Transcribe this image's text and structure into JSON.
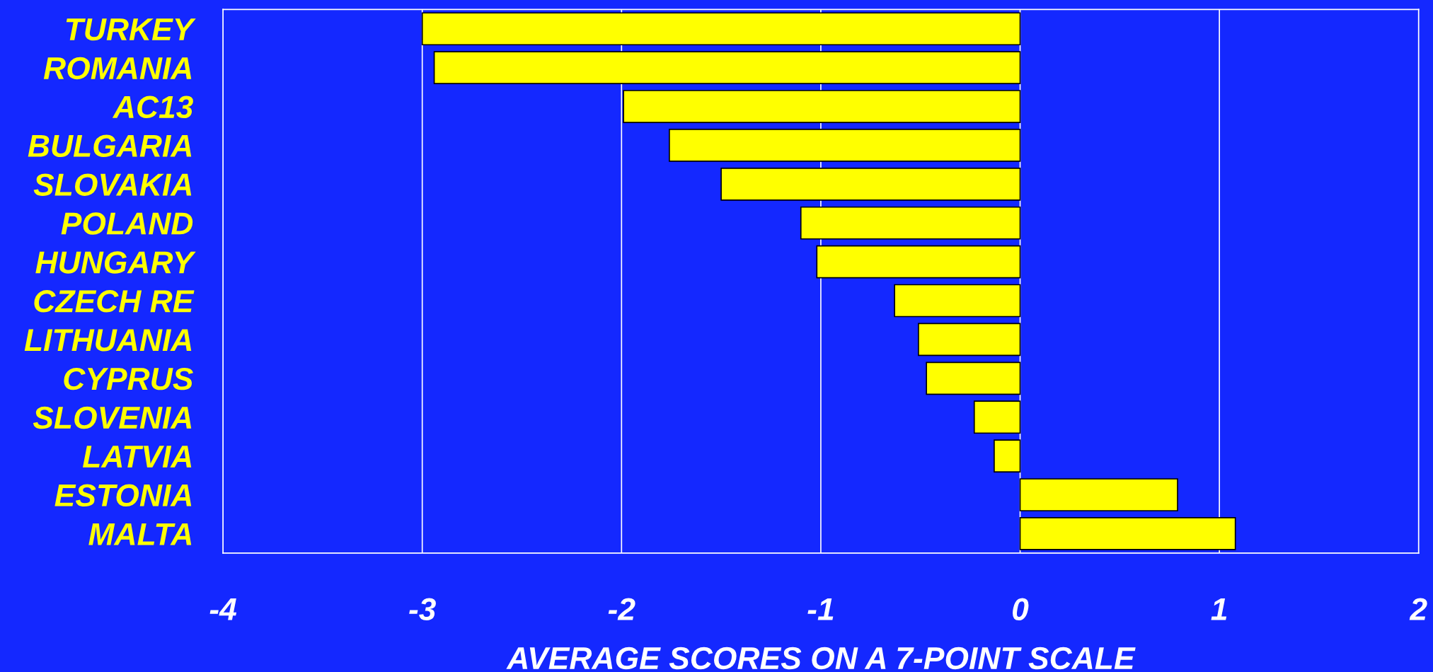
{
  "chart_data": {
    "type": "bar",
    "orientation": "horizontal",
    "categories": [
      "TURKEY",
      "ROMANIA",
      "AC13",
      "BULGARIA",
      "SLOVAKIA",
      "POLAND",
      "HUNGARY",
      "CZECH RE",
      "LITHUANIA",
      "CYPRUS",
      "SLOVENIA",
      "LATVIA",
      "ESTONIA",
      "MALTA"
    ],
    "values": [
      -3.0,
      -2.94,
      -1.99,
      -1.76,
      -1.5,
      -1.1,
      -1.02,
      -0.63,
      -0.51,
      -0.47,
      -0.23,
      -0.13,
      0.79,
      1.08
    ],
    "color": "#ffff00",
    "xlabel": "AVERAGE SCORES ON A 7-POINT SCALE",
    "xlim": [
      -4,
      2
    ],
    "xticks": [
      -4,
      -3,
      -2,
      -1,
      0,
      1,
      2
    ],
    "grid": "x",
    "legend": false
  }
}
